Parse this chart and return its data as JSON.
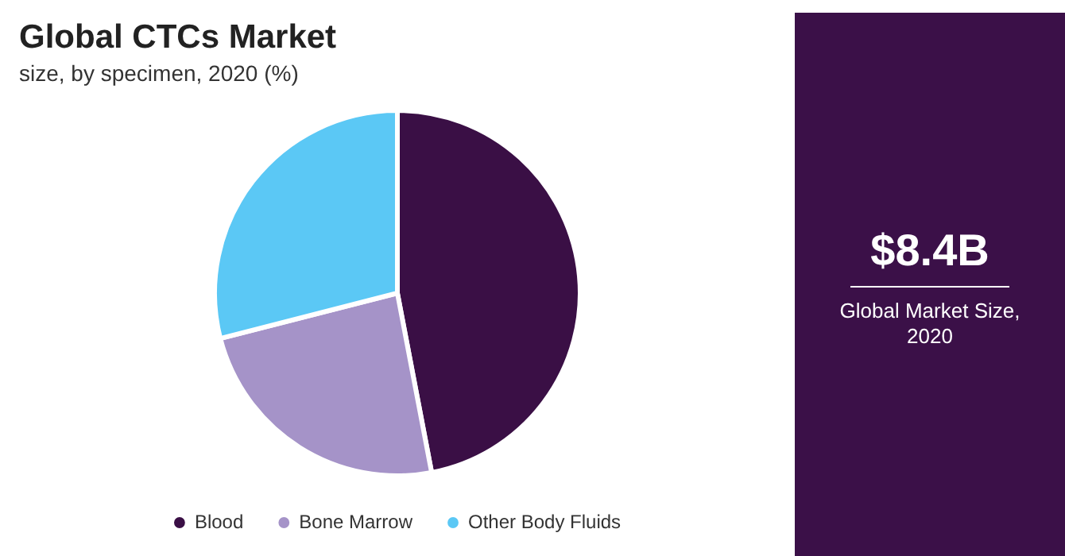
{
  "chart_data": {
    "type": "pie",
    "title": "Global CTCs Market",
    "subtitle": "size, by specimen, 2020 (%)",
    "categories": [
      "Blood",
      "Bone Marrow",
      "Other Body Fluids"
    ],
    "values": [
      47,
      24,
      29
    ],
    "colors": [
      "#3a0f45",
      "#a593c8",
      "#5bc8f5"
    ],
    "legend": "bottom",
    "annotations": [
      "$8.4B",
      "Global Market Size, 2020"
    ]
  }
}
